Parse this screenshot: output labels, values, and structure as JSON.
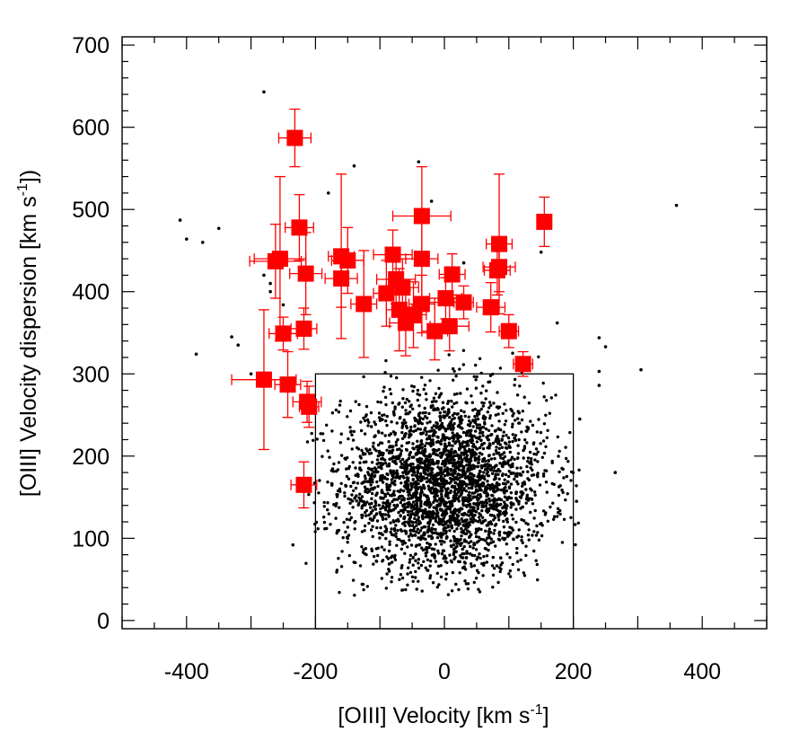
{
  "chart_data": {
    "type": "scatter",
    "xlabel": {
      "main": "[OIII] Velocity [km s",
      "sup": "-1",
      "close": "]"
    },
    "ylabel": {
      "main": "[OIII] Velocity dispersion [km s",
      "sup": "-1",
      "close": "])"
    },
    "xlim": [
      -500,
      500
    ],
    "ylim": [
      -10,
      710
    ],
    "x_ticks": [
      -400,
      -200,
      0,
      200,
      400
    ],
    "y_ticks": [
      0,
      100,
      200,
      300,
      400,
      500,
      600,
      700
    ],
    "grid": false,
    "selection_box": {
      "x": [
        -200,
        200
      ],
      "y": [
        -10,
        300
      ]
    },
    "colors": {
      "background_points": "#000000",
      "highlight": "#ff0000",
      "frame": "#000000"
    },
    "background_distribution": {
      "description_count": 3000,
      "x_center": 0,
      "x_sd": 80,
      "y_center": 165,
      "y_sd": 55
    },
    "outlier_points": [
      [
        -280,
        643
      ],
      [
        -410,
        487
      ],
      [
        -400,
        464
      ],
      [
        -375,
        460
      ],
      [
        -350,
        477
      ],
      [
        -330,
        345
      ],
      [
        -320,
        335
      ],
      [
        -385,
        324
      ],
      [
        -300,
        300
      ],
      [
        -255,
        430
      ],
      [
        -270,
        410
      ],
      [
        -235,
        480
      ],
      [
        -180,
        520
      ],
      [
        -140,
        553
      ],
      [
        -40,
        558
      ],
      [
        -20,
        510
      ],
      [
        30,
        435
      ],
      [
        80,
        450
      ],
      [
        150,
        448
      ],
      [
        175,
        362
      ],
      [
        240,
        344
      ],
      [
        250,
        333
      ],
      [
        240,
        303
      ],
      [
        240,
        286
      ],
      [
        305,
        305
      ],
      [
        360,
        505
      ],
      [
        210,
        245
      ],
      [
        205,
        145
      ],
      [
        265,
        180
      ],
      [
        -235,
        92
      ],
      [
        -270,
        400
      ],
      [
        -250,
        384
      ],
      [
        -280,
        420
      ]
    ],
    "series": [
      {
        "marker": "square",
        "points": [
          {
            "x": -232,
            "y": 587,
            "xerr": 25,
            "yerr": 35
          },
          {
            "x": -225,
            "y": 478,
            "xerr": 22,
            "yerr": 40
          },
          {
            "x": -255,
            "y": 440,
            "xerr": 40,
            "yerr": 100
          },
          {
            "x": -262,
            "y": 437,
            "xerr": 40,
            "yerr": 45
          },
          {
            "x": -215,
            "y": 422,
            "xerr": 25,
            "yerr": 50
          },
          {
            "x": -160,
            "y": 443,
            "xerr": 20,
            "yerr": 100
          },
          {
            "x": -150,
            "y": 438,
            "xerr": 25,
            "yerr": 40
          },
          {
            "x": -160,
            "y": 416,
            "xerr": 25,
            "yerr": 35
          },
          {
            "x": -125,
            "y": 385,
            "xerr": 20,
            "yerr": 65
          },
          {
            "x": -80,
            "y": 445,
            "xerr": 30,
            "yerr": 30
          },
          {
            "x": -75,
            "y": 415,
            "xerr": 30,
            "yerr": 30
          },
          {
            "x": -90,
            "y": 398,
            "xerr": 20,
            "yerr": 40
          },
          {
            "x": -65,
            "y": 405,
            "xerr": 25,
            "yerr": 35
          },
          {
            "x": -70,
            "y": 378,
            "xerr": 20,
            "yerr": 50
          },
          {
            "x": -60,
            "y": 362,
            "xerr": 25,
            "yerr": 40
          },
          {
            "x": -48,
            "y": 372,
            "xerr": 20,
            "yerr": 40
          },
          {
            "x": -35,
            "y": 385,
            "xerr": 20,
            "yerr": 35
          },
          {
            "x": -35,
            "y": 492,
            "xerr": 45,
            "yerr": 60
          },
          {
            "x": -35,
            "y": 440,
            "xerr": 25,
            "yerr": 60
          },
          {
            "x": -15,
            "y": 352,
            "xerr": 20,
            "yerr": 35
          },
          {
            "x": 2,
            "y": 392,
            "xerr": 25,
            "yerr": 25
          },
          {
            "x": 8,
            "y": 358,
            "xerr": 30,
            "yerr": 30
          },
          {
            "x": 12,
            "y": 421,
            "xerr": 20,
            "yerr": 25
          },
          {
            "x": 30,
            "y": 387,
            "xerr": 15,
            "yerr": 20
          },
          {
            "x": 72,
            "y": 381,
            "xerr": 22,
            "yerr": 30
          },
          {
            "x": 85,
            "y": 458,
            "xerr": 20,
            "yerr": 85
          },
          {
            "x": 85,
            "y": 430,
            "xerr": 25,
            "yerr": 30
          },
          {
            "x": 82,
            "y": 426,
            "xerr": 20,
            "yerr": 30
          },
          {
            "x": 100,
            "y": 352,
            "xerr": 15,
            "yerr": 20
          },
          {
            "x": 122,
            "y": 312,
            "xerr": 15,
            "yerr": 15
          },
          {
            "x": 155,
            "y": 485,
            "xerr": 8,
            "yerr": 30
          },
          {
            "x": -250,
            "y": 349,
            "xerr": 22,
            "yerr": 20
          },
          {
            "x": -218,
            "y": 355,
            "xerr": 20,
            "yerr": 25
          },
          {
            "x": -280,
            "y": 293,
            "xerr": 50,
            "yerr": 85
          },
          {
            "x": -243,
            "y": 287,
            "xerr": 20,
            "yerr": 40
          },
          {
            "x": -213,
            "y": 266,
            "xerr": 22,
            "yerr": 25
          },
          {
            "x": -210,
            "y": 260,
            "xerr": 15,
            "yerr": 25
          },
          {
            "x": -218,
            "y": 165,
            "xerr": 20,
            "yerr": 28
          }
        ]
      }
    ]
  }
}
